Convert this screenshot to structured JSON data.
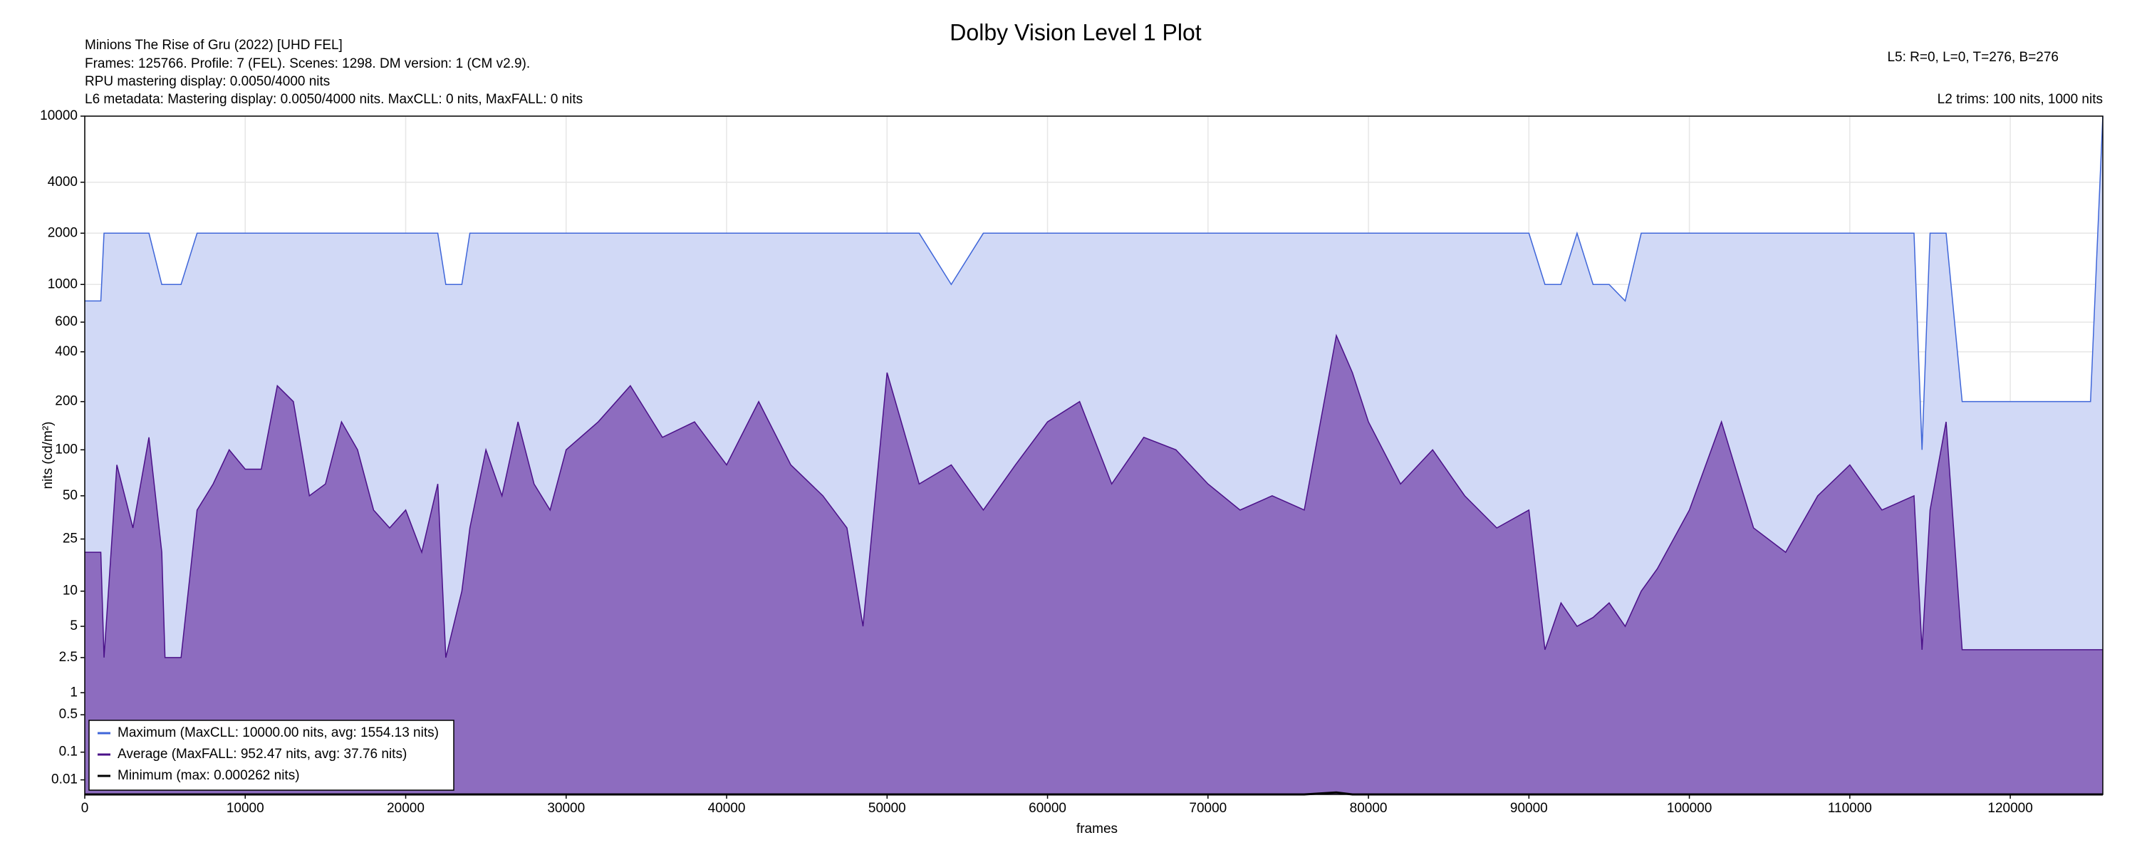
{
  "chart_data": {
    "type": "area",
    "title": "Dolby Vision Level 1 Plot",
    "subtitle": [
      "Minions The Rise of Gru (2022) [UHD FEL]",
      "Frames: 125766. Profile: 7 (FEL). Scenes: 1298. DM version: 1 (CM v2.9).",
      "RPU mastering display: 0.0050/4000 nits",
      "L6 metadata: Mastering display: 0.0050/4000 nits. MaxCLL: 0 nits, MaxFALL: 0 nits"
    ],
    "annotations": [
      "L5: R=0, L=0, T=276, B=276",
      "L2 trims: 100 nits, 1000 nits"
    ],
    "xlabel": "frames",
    "ylabel": "nits (cd/m²)",
    "yscale": "pq",
    "grid": true,
    "legend": "lower left",
    "xlim": [
      0,
      125766
    ],
    "xticks": [
      0,
      10000,
      20000,
      30000,
      40000,
      50000,
      60000,
      70000,
      80000,
      90000,
      100000,
      110000,
      120000
    ],
    "ylim": [
      0,
      10000
    ],
    "yticks": [
      0.01,
      0.1,
      0.5,
      1,
      2.5,
      5,
      10,
      25,
      50,
      100,
      200,
      400,
      600,
      1000,
      2000,
      4000,
      10000
    ],
    "x": [
      0,
      1000,
      1200,
      2000,
      3000,
      4000,
      4800,
      5000,
      6000,
      7000,
      8000,
      9000,
      10000,
      11000,
      12000,
      13000,
      14000,
      15000,
      16000,
      17000,
      18000,
      19000,
      20000,
      21000,
      22000,
      22500,
      23500,
      24000,
      25000,
      26000,
      27000,
      28000,
      29000,
      30000,
      32000,
      34000,
      36000,
      38000,
      40000,
      42000,
      44000,
      46000,
      47500,
      48500,
      50000,
      52000,
      54000,
      56000,
      58000,
      60000,
      62000,
      64000,
      66000,
      68000,
      70000,
      72000,
      74000,
      76000,
      78000,
      79000,
      80000,
      82000,
      84000,
      86000,
      88000,
      90000,
      91000,
      92000,
      93000,
      94000,
      95000,
      96000,
      97000,
      98000,
      100000,
      102000,
      104000,
      106000,
      108000,
      110000,
      112000,
      114000,
      114500,
      115000,
      116000,
      117000,
      120000,
      125000,
      125766
    ],
    "series": [
      {
        "name": "Maximum (MaxCLL: 10000.00 nits, avg: 1554.13 nits)",
        "color": "#3f66d9",
        "fill": "#d1d9f6",
        "values": [
          800,
          800,
          2000,
          2000,
          2000,
          2000,
          1000,
          1000,
          1000,
          2000,
          2000,
          2000,
          2000,
          2000,
          2000,
          2000,
          2000,
          2000,
          2000,
          2000,
          2000,
          2000,
          2000,
          2000,
          2000,
          1000,
          1000,
          2000,
          2000,
          2000,
          2000,
          2000,
          2000,
          2000,
          2000,
          2000,
          2000,
          2000,
          2000,
          2000,
          2000,
          2000,
          2000,
          2000,
          2000,
          2000,
          1000,
          2000,
          2000,
          2000,
          2000,
          2000,
          2000,
          2000,
          2000,
          2000,
          2000,
          2000,
          2000,
          2000,
          2000,
          2000,
          2000,
          2000,
          2000,
          2000,
          1000,
          1000,
          2000,
          1000,
          1000,
          800,
          2000,
          2000,
          2000,
          2000,
          2000,
          2000,
          2000,
          2000,
          2000,
          2000,
          100,
          2000,
          2000,
          200,
          200,
          200,
          10000
        ]
      },
      {
        "name": "Average (MaxFALL: 952.47 nits, avg: 37.76 nits)",
        "color": "#4b1189",
        "fill": "#8d6cbf",
        "values": [
          20,
          20,
          2.5,
          80,
          30,
          120,
          20,
          2.5,
          2.5,
          40,
          60,
          100,
          75,
          75,
          250,
          200,
          50,
          60,
          150,
          100,
          40,
          30,
          40,
          20,
          60,
          2.5,
          10,
          30,
          100,
          50,
          150,
          60,
          40,
          100,
          150,
          250,
          120,
          150,
          80,
          200,
          80,
          50,
          30,
          5,
          300,
          60,
          80,
          40,
          80,
          150,
          200,
          60,
          120,
          100,
          60,
          40,
          50,
          40,
          500,
          300,
          150,
          60,
          100,
          50,
          30,
          40,
          3,
          8,
          5,
          6,
          8,
          5,
          10,
          15,
          40,
          150,
          30,
          20,
          50,
          80,
          40,
          50,
          3,
          40,
          150,
          3,
          3,
          3,
          3
        ]
      },
      {
        "name": "Minimum (max: 0.000262 nits)",
        "color": "#000000",
        "values": [
          0,
          0,
          0,
          0,
          0,
          0,
          0,
          0,
          0,
          0,
          0,
          0,
          0,
          0,
          0,
          0,
          0,
          0,
          0,
          0,
          0,
          0,
          0,
          0,
          0,
          0,
          0,
          0,
          0,
          0,
          0,
          0,
          0,
          0,
          0,
          0,
          0,
          0,
          0,
          0,
          0,
          0,
          0,
          0,
          0,
          0,
          0,
          0,
          0,
          0,
          0,
          0,
          0,
          0,
          0,
          0,
          0,
          0,
          0.000262,
          0,
          0,
          0,
          0,
          0,
          0,
          0,
          0,
          0,
          0,
          0,
          0,
          0,
          0,
          0,
          0,
          0,
          0,
          0,
          0,
          0,
          0,
          0,
          0,
          0,
          0,
          0,
          0,
          0,
          0
        ]
      }
    ]
  }
}
